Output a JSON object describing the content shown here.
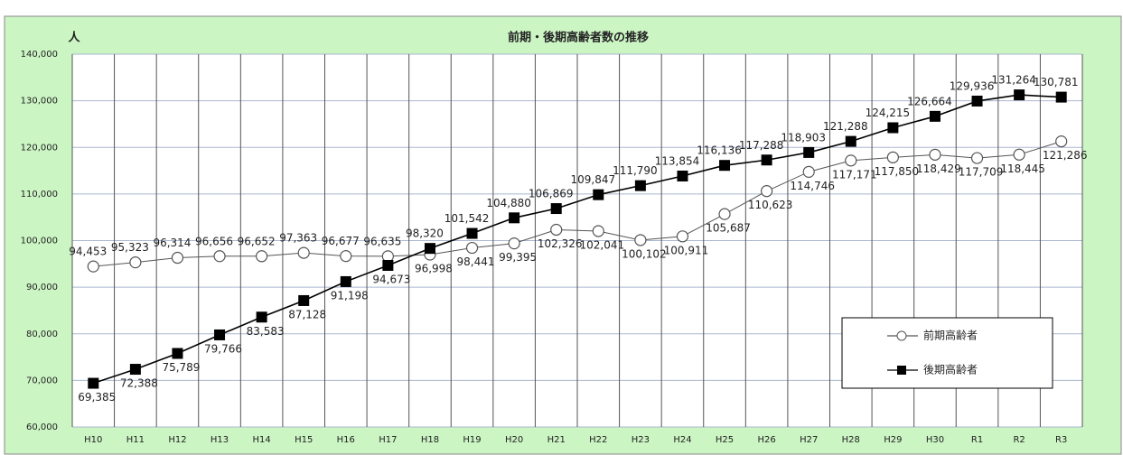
{
  "chart_data": {
    "type": "line",
    "title": "前期・後期高齢者数の推移",
    "y_unit": "人",
    "categories": [
      "H10",
      "H11",
      "H12",
      "H13",
      "H14",
      "H15",
      "H16",
      "H17",
      "H18",
      "H19",
      "H20",
      "H21",
      "H22",
      "H23",
      "H24",
      "H25",
      "H26",
      "H27",
      "H28",
      "H29",
      "H30",
      "R1",
      "R2",
      "R3"
    ],
    "series": [
      {
        "name": "前期高齢者",
        "color": "#555555",
        "marker": "circle",
        "values": [
          94453,
          95323,
          96314,
          96656,
          96652,
          97363,
          96677,
          96635,
          96998,
          98441,
          99395,
          102326,
          102041,
          100102,
          100911,
          105687,
          110623,
          114746,
          117171,
          117850,
          118429,
          117709,
          118445,
          121286
        ],
        "value_labels": [
          "94,453",
          "95,323",
          "96,314",
          "96,656",
          "96,652",
          "97,363",
          "96,677",
          "96,635",
          "96,998",
          "98,441",
          "99,395",
          "102,326",
          "102,041",
          "100,102",
          "100,911",
          "105,687",
          "110,623",
          "114,746",
          "117,171",
          "117,850",
          "118,429",
          "117,709",
          "118,445",
          "121,286"
        ]
      },
      {
        "name": "後期高齢者",
        "color": "#000000",
        "marker": "square",
        "values": [
          69385,
          72388,
          75789,
          79766,
          83583,
          87128,
          91198,
          94673,
          98320,
          101542,
          104880,
          106869,
          109847,
          111790,
          113854,
          116136,
          117288,
          118903,
          121288,
          124215,
          126664,
          129936,
          131264,
          130781
        ],
        "value_labels": [
          "69,385",
          "72,388",
          "75,789",
          "79,766",
          "83,583",
          "87,128",
          "91,198",
          "94,673",
          "98,320",
          "101,542",
          "104,880",
          "106,869",
          "109,847",
          "111,790",
          "113,854",
          "116,136",
          "117,288",
          "118,903",
          "121,288",
          "124,215",
          "126,664",
          "129,936",
          "131,264",
          "130,781"
        ]
      }
    ],
    "ylim": [
      60000,
      140000
    ],
    "yticks": [
      {
        "value": 60000,
        "label": "60,000"
      },
      {
        "value": 70000,
        "label": "70,000"
      },
      {
        "value": 80000,
        "label": "80,000"
      },
      {
        "value": 90000,
        "label": "90,000"
      },
      {
        "value": 100000,
        "label": "100,000"
      },
      {
        "value": 110000,
        "label": "110,000"
      },
      {
        "value": 120000,
        "label": "120,000"
      },
      {
        "value": 130000,
        "label": "130,000"
      },
      {
        "value": 140000,
        "label": "140,000"
      }
    ],
    "grid": true
  }
}
